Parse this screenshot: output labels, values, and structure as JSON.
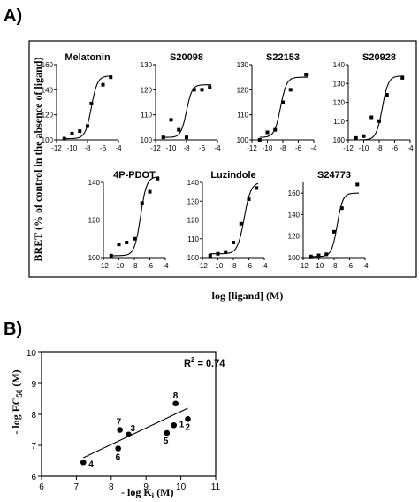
{
  "labels": {
    "panel_a": "A)",
    "panel_b": "B)",
    "a_xlabel": "log [ligand] (M)",
    "a_ylabel": "BRET (% of control in the absence of ligand)",
    "b_xlabel": "- log K",
    "b_xlabel_sub": "i",
    "b_xlabel_unit": " (M)",
    "b_ylabel": "- log EC",
    "b_ylabel_sub": "50",
    "b_ylabel_unit": " (M)",
    "r2_prefix": "R",
    "r2_sup": "2",
    "r2_value": " = 0.74"
  },
  "chart_data": [
    {
      "type": "line",
      "title": "Melatonin",
      "xlim": [
        -12,
        -4
      ],
      "ylim": [
        100,
        160
      ],
      "xticks": [
        -12,
        -10,
        -8,
        -6,
        -4
      ],
      "yticks": [
        100,
        120,
        140,
        160
      ],
      "points": [
        [
          -11,
          101
        ],
        [
          -10,
          105
        ],
        [
          -9,
          107
        ],
        [
          -8,
          111
        ],
        [
          -7.5,
          129
        ],
        [
          -6,
          144
        ],
        [
          -5,
          150
        ]
      ],
      "fit": {
        "bottom": 101,
        "top": 151,
        "ec50_log": -7.5,
        "hill": 1.1
      }
    },
    {
      "type": "line",
      "title": "S20098",
      "xlim": [
        -12,
        -4
      ],
      "ylim": [
        100,
        130
      ],
      "xticks": [
        -12,
        -10,
        -8,
        -6,
        -4
      ],
      "yticks": [
        100,
        110,
        120,
        130
      ],
      "points": [
        [
          -11,
          101
        ],
        [
          -10,
          108
        ],
        [
          -9,
          104
        ],
        [
          -8,
          101
        ],
        [
          -7,
          120
        ],
        [
          -6,
          120
        ],
        [
          -5,
          121
        ]
      ],
      "fit": {
        "bottom": 101,
        "top": 122,
        "ec50_log": -8,
        "hill": 1.2
      }
    },
    {
      "type": "line",
      "title": "S22153",
      "xlim": [
        -12,
        -4
      ],
      "ylim": [
        100,
        130
      ],
      "xticks": [
        -12,
        -10,
        -8,
        -6,
        -4
      ],
      "yticks": [
        100,
        110,
        120,
        130
      ],
      "points": [
        [
          -11,
          100
        ],
        [
          -10,
          103
        ],
        [
          -9,
          104
        ],
        [
          -8,
          115
        ],
        [
          -7,
          120
        ],
        [
          -5,
          126
        ]
      ],
      "fit": {
        "bottom": 101,
        "top": 125,
        "ec50_log": -8.3,
        "hill": 1.1
      }
    },
    {
      "type": "line",
      "title": "S20928",
      "xlim": [
        -12,
        -4
      ],
      "ylim": [
        100,
        140
      ],
      "xticks": [
        -12,
        -10,
        -8,
        -6,
        -4
      ],
      "yticks": [
        100,
        110,
        120,
        130,
        140
      ],
      "points": [
        [
          -11,
          101
        ],
        [
          -10,
          102
        ],
        [
          -9,
          112
        ],
        [
          -8,
          110
        ],
        [
          -7,
          124
        ],
        [
          -5,
          133
        ]
      ],
      "fit": {
        "bottom": 100,
        "top": 134,
        "ec50_log": -7.6,
        "hill": 1.1
      }
    },
    {
      "type": "line",
      "title": "4P-PDOT",
      "xlim": [
        -12,
        -4
      ],
      "ylim": [
        100,
        140
      ],
      "xticks": [
        -12,
        -10,
        -8,
        -6,
        -4
      ],
      "yticks": [
        100,
        120,
        140
      ],
      "points": [
        [
          -11,
          101
        ],
        [
          -10,
          107
        ],
        [
          -9,
          108
        ],
        [
          -8,
          110
        ],
        [
          -7,
          129
        ],
        [
          -6,
          135
        ],
        [
          -5,
          142
        ]
      ],
      "fit": {
        "bottom": 101,
        "top": 143,
        "ec50_log": -7.2,
        "hill": 1.1
      }
    },
    {
      "type": "line",
      "title": "Luzindole",
      "xlim": [
        -12,
        -4
      ],
      "ylim": [
        100,
        140
      ],
      "xticks": [
        -12,
        -10,
        -8,
        -6,
        -4
      ],
      "yticks": [
        100,
        110,
        120,
        130,
        140
      ],
      "points": [
        [
          -11,
          101
        ],
        [
          -10,
          102
        ],
        [
          -9,
          103
        ],
        [
          -8,
          108
        ],
        [
          -7,
          118
        ],
        [
          -6,
          131
        ],
        [
          -5,
          137
        ]
      ],
      "fit": {
        "bottom": 102,
        "top": 140,
        "ec50_log": -6.6,
        "hill": 1.0
      }
    },
    {
      "type": "line",
      "title": "S24773",
      "xlim": [
        -12,
        -4
      ],
      "ylim": [
        100,
        170
      ],
      "xticks": [
        -12,
        -10,
        -8,
        -6,
        -4
      ],
      "yticks": [
        100,
        120,
        140,
        160
      ],
      "points": [
        [
          -11,
          101
        ],
        [
          -10,
          102
        ],
        [
          -9,
          103
        ],
        [
          -8,
          124
        ],
        [
          -7,
          146
        ],
        [
          -5,
          168
        ]
      ],
      "fit": {
        "bottom": 101,
        "top": 160,
        "ec50_log": -7.6,
        "hill": 1.2
      }
    },
    {
      "type": "scatter",
      "title": "",
      "xlim": [
        6,
        11
      ],
      "ylim": [
        6,
        10
      ],
      "xticks": [
        6,
        7,
        8,
        9,
        10,
        11
      ],
      "yticks": [
        6,
        7,
        8,
        9,
        10
      ],
      "points": [
        {
          "x": 9.8,
          "y": 7.65,
          "label": "1"
        },
        {
          "x": 10.2,
          "y": 7.85,
          "label": "2"
        },
        {
          "x": 8.5,
          "y": 7.35,
          "label": "3"
        },
        {
          "x": 7.2,
          "y": 6.45,
          "label": "4"
        },
        {
          "x": 9.6,
          "y": 7.4,
          "label": "5"
        },
        {
          "x": 8.2,
          "y": 6.9,
          "label": "6"
        },
        {
          "x": 8.25,
          "y": 7.5,
          "label": "7"
        },
        {
          "x": 9.85,
          "y": 8.35,
          "label": "8"
        }
      ],
      "regression": {
        "x": [
          7.2,
          10.2
        ],
        "y": [
          6.6,
          8.2
        ]
      },
      "r2": 0.74
    }
  ]
}
